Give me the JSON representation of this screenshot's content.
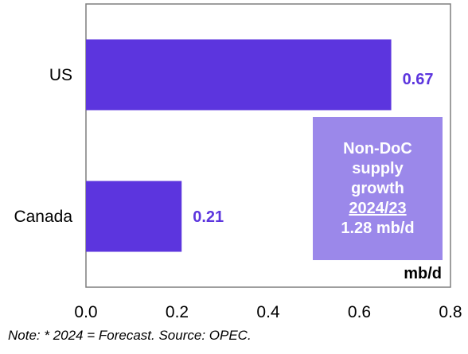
{
  "chart_data": {
    "type": "bar",
    "orientation": "horizontal",
    "categories": [
      "US",
      "Canada"
    ],
    "values": [
      0.67,
      0.21
    ],
    "data_labels": [
      "0.67",
      "0.21"
    ],
    "xlim": [
      0.0,
      0.8
    ],
    "x_ticks": [
      "0.0",
      "0.2",
      "0.4",
      "0.6",
      "0.8"
    ],
    "unit_label": "mb/d",
    "grid": false,
    "bar_color": "#5c35de",
    "label_color": "#5c35de"
  },
  "info_box": {
    "line1": "Non-DoC",
    "line2": "supply",
    "line3": "growth",
    "line4": "2024/23",
    "line5": "1.28 mb/d",
    "color": "#9b88ea"
  },
  "note": "Note: * 2024 = Forecast. Source: OPEC."
}
